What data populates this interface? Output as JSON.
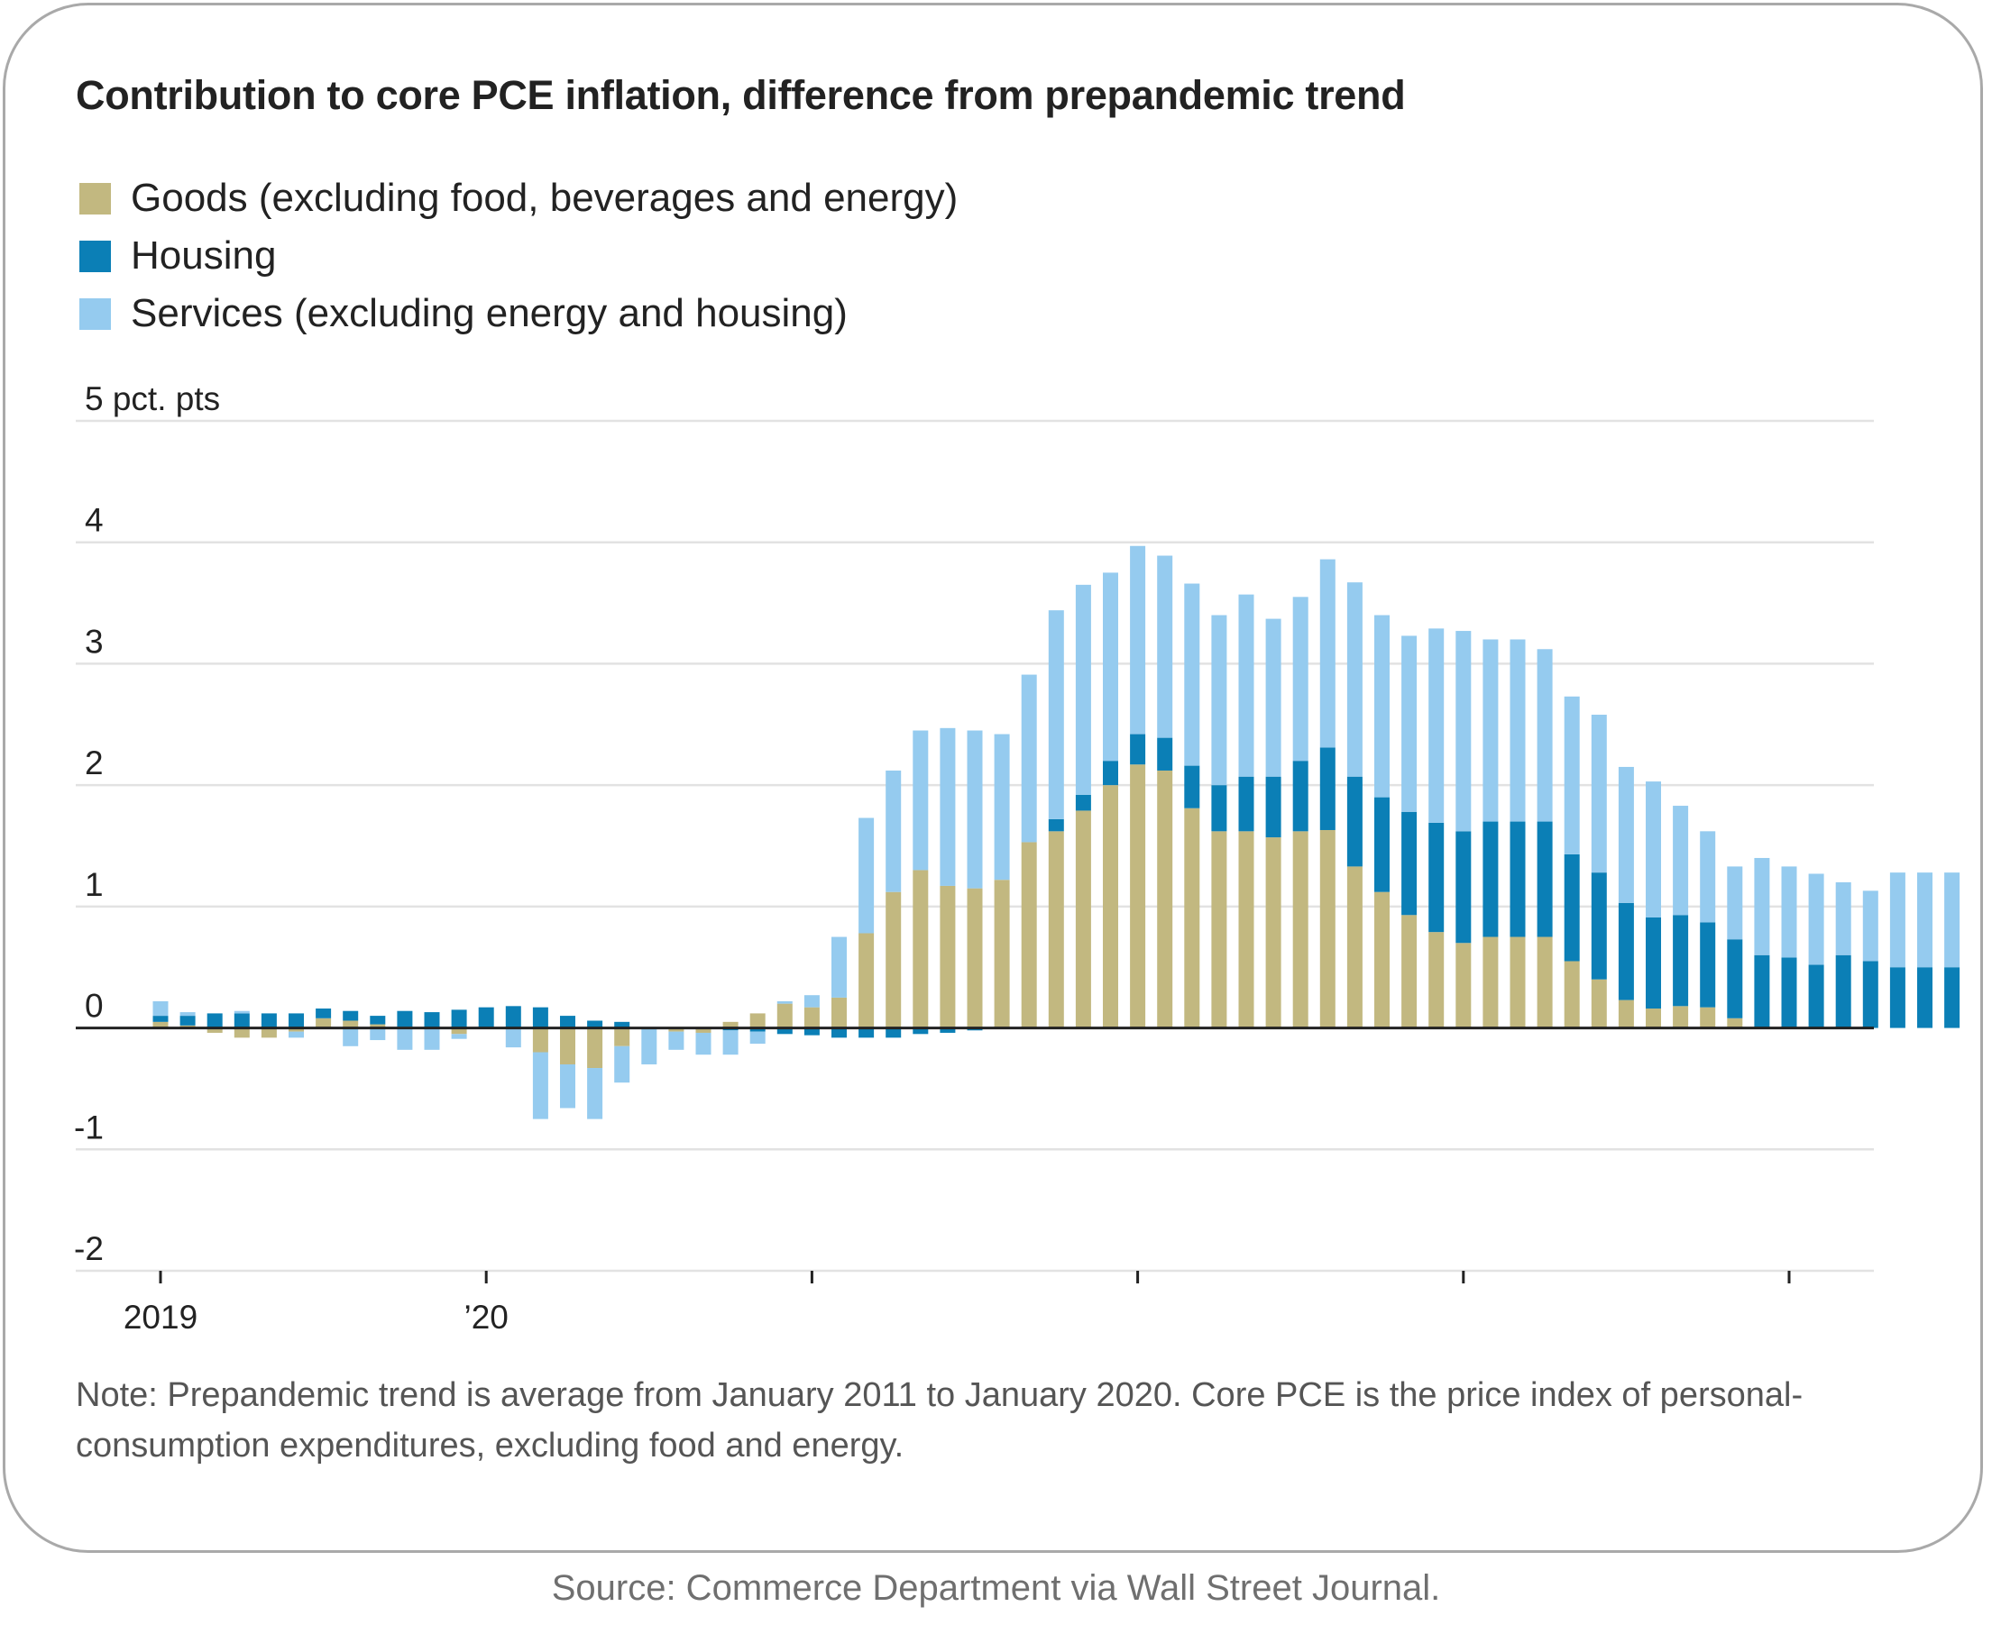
{
  "title": "Contribution to core PCE inflation, difference from prepandemic trend",
  "note": "Note: Prepandemic trend is average from January 2011 to January 2020. Core PCE is the price index of personal-consumption expenditures, excluding food and energy.",
  "source": "Source: Commerce Department via Wall Street Journal.",
  "colors": {
    "goods": "#c2b880",
    "housing": "#0b7fb6",
    "services": "#95cbef",
    "grid": "#e2e2e2",
    "zero": "#222222"
  },
  "chart_data": {
    "type": "bar",
    "stacked": true,
    "title": "Contribution to core PCE inflation, difference from prepandemic trend",
    "ylabel": "5 pct. pts",
    "ylim": [
      -2,
      5
    ],
    "yticks": [
      5,
      4,
      3,
      2,
      1,
      0,
      -1,
      -2
    ],
    "ytick_labels": [
      "5 pct. pts",
      "4",
      "3",
      "2",
      "1",
      "0",
      "-1",
      "-2"
    ],
    "xtick_labels": [
      "2019",
      "’20",
      "",
      "",
      "",
      ""
    ],
    "xtick_month_index": [
      0,
      12,
      24,
      36,
      48,
      60
    ],
    "legend_position": "top-left",
    "grid": true,
    "categories": [
      "Jan 2019",
      "Feb 2019",
      "Mar 2019",
      "Apr 2019",
      "May 2019",
      "Jun 2019",
      "Jul 2019",
      "Aug 2019",
      "Sep 2019",
      "Oct 2019",
      "Nov 2019",
      "Dec 2019",
      "Jan 2020",
      "Feb 2020",
      "Mar 2020",
      "Apr 2020",
      "May 2020",
      "Jun 2020",
      "Jul 2020",
      "Aug 2020",
      "Sep 2020",
      "Oct 2020",
      "Nov 2020",
      "Dec 2020",
      "Jan 2021",
      "Feb 2021",
      "Mar 2021",
      "Apr 2021",
      "May 2021",
      "Jun 2021",
      "Jul 2021",
      "Aug 2021",
      "Sep 2021",
      "Oct 2021",
      "Nov 2021",
      "Dec 2021",
      "Jan 2022",
      "Feb 2022",
      "Mar 2022",
      "Apr 2022",
      "May 2022",
      "Jun 2022",
      "Jul 2022",
      "Aug 2022",
      "Sep 2022",
      "Oct 2022",
      "Nov 2022",
      "Dec 2022",
      "Jan 2023",
      "Feb 2023",
      "Mar 2023",
      "Apr 2023",
      "May 2023",
      "Jun 2023",
      "Jul 2023",
      "Aug 2023",
      "Sep 2023",
      "Oct 2023",
      "Nov 2023",
      "Dec 2023",
      "Jan 2024",
      "Feb 2024",
      "Mar 2024",
      "Apr 2024",
      "May 2024",
      "Jun 2024",
      "Jul 2024"
    ],
    "series": [
      {
        "name": "Goods (excluding food, beverages and energy)",
        "color": "#c2b880",
        "values": [
          0.05,
          0.02,
          -0.04,
          -0.08,
          -0.08,
          -0.03,
          0.08,
          0.06,
          0.03,
          0.01,
          0,
          -0.05,
          0,
          -0.01,
          -0.2,
          -0.3,
          -0.33,
          -0.15,
          0,
          -0.03,
          -0.04,
          0.05,
          0.12,
          0.2,
          0.17,
          0.25,
          0.78,
          1.12,
          1.3,
          1.17,
          1.15,
          1.22,
          1.53,
          1.62,
          1.79,
          2.0,
          2.17,
          2.12,
          1.81,
          1.62,
          1.62,
          1.57,
          1.62,
          1.63,
          1.33,
          1.12,
          0.93,
          0.79,
          0.7,
          0.75,
          0.75,
          0.75,
          0.55,
          0.4,
          0.23,
          0.16,
          0.18,
          0.17,
          0.08,
          0,
          0,
          0,
          0,
          0,
          0,
          0,
          0
        ]
      },
      {
        "name": "Housing",
        "color": "#0b7fb6",
        "values": [
          0.05,
          0.08,
          0.12,
          0.12,
          0.12,
          0.12,
          0.08,
          0.08,
          0.07,
          0.13,
          0.13,
          0.15,
          0.17,
          0.18,
          0.17,
          0.1,
          0.06,
          0.05,
          0,
          0,
          0,
          -0.02,
          -0.03,
          -0.05,
          -0.06,
          -0.08,
          -0.08,
          -0.08,
          -0.05,
          -0.04,
          -0.02,
          0,
          0,
          0.1,
          0.13,
          0.2,
          0.25,
          0.27,
          0.35,
          0.38,
          0.45,
          0.5,
          0.58,
          0.68,
          0.74,
          0.78,
          0.85,
          0.9,
          0.92,
          0.95,
          0.95,
          0.95,
          0.88,
          0.88,
          0.8,
          0.75,
          0.75,
          0.7,
          0.65,
          0.6,
          0.58,
          0.52,
          0.6,
          0.55,
          0.5,
          0.5,
          0.5
        ]
      },
      {
        "name": "Services (excluding energy and housing)",
        "color": "#95cbef",
        "values": [
          0.12,
          0.03,
          0,
          0.02,
          0,
          -0.05,
          0,
          -0.15,
          -0.1,
          -0.18,
          -0.18,
          -0.04,
          0,
          -0.15,
          -0.55,
          -0.36,
          -0.42,
          -0.3,
          -0.3,
          -0.15,
          -0.18,
          -0.2,
          -0.1,
          0.02,
          0.1,
          0.5,
          0.95,
          1.0,
          1.15,
          1.3,
          1.3,
          1.2,
          1.38,
          1.72,
          1.73,
          1.55,
          1.55,
          1.5,
          1.5,
          1.4,
          1.5,
          1.3,
          1.35,
          1.55,
          1.6,
          1.5,
          1.45,
          1.6,
          1.65,
          1.5,
          1.5,
          1.42,
          1.3,
          1.3,
          1.12,
          1.12,
          0.9,
          0.75,
          0.6,
          0.8,
          0.75,
          0.75,
          0.6,
          0.58,
          0.78,
          0.78,
          0.78
        ]
      }
    ]
  }
}
